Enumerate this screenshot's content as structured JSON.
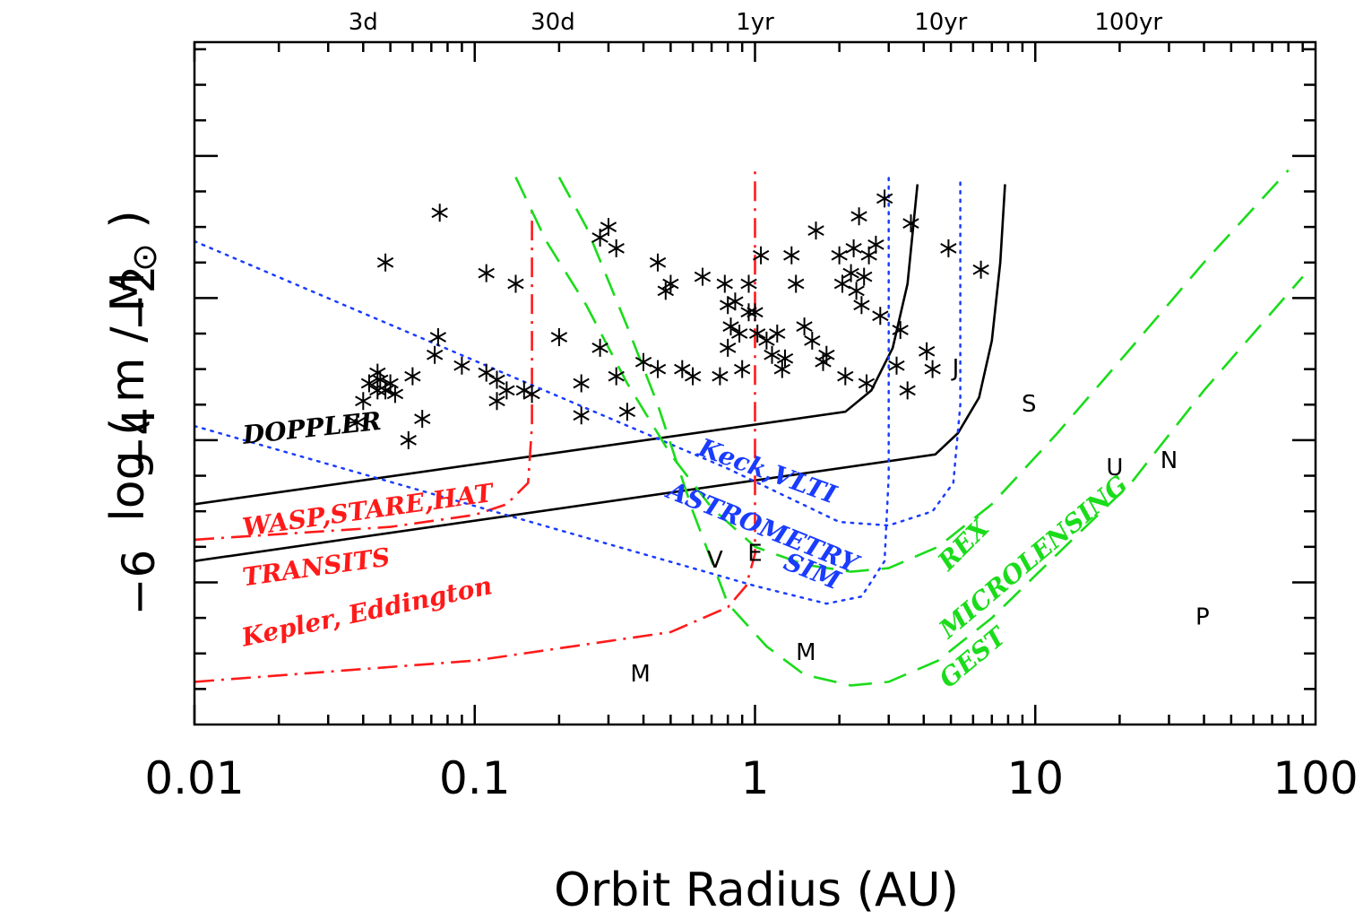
{
  "chart_data": {
    "type": "scatter",
    "xlabel": "Orbit Radius (AU)",
    "ylabel": "log ( m / M",
    "ylabel_symbol": "⊙",
    "ylabel_close": " )",
    "xscale": "log",
    "xlim": [
      0.01,
      100
    ],
    "ylim": [
      -8,
      1.6
    ],
    "x_tick_labels": [
      {
        "value": 0.01,
        "label": "0.01"
      },
      {
        "value": 0.1,
        "label": "0.1"
      },
      {
        "value": 1,
        "label": "1"
      },
      {
        "value": 10,
        "label": "10"
      },
      {
        "value": 100,
        "label": "100"
      }
    ],
    "y_tick_labels": [
      {
        "value": -2,
        "label": "−2"
      },
      {
        "value": -4,
        "label": "−4"
      },
      {
        "value": -6,
        "label": "−6"
      }
    ],
    "period_labels": [
      {
        "x": 0.04,
        "label": "3d"
      },
      {
        "x": 0.19,
        "label": "30d"
      },
      {
        "x": 1.0,
        "label": "1yr"
      },
      {
        "x": 4.6,
        "label": "10yr"
      },
      {
        "x": 21.5,
        "label": "100yr"
      }
    ],
    "planets": [
      {
        "label": "M",
        "x": 0.39,
        "y": -7.3
      },
      {
        "label": "V",
        "x": 0.72,
        "y": -5.7
      },
      {
        "label": "E",
        "x": 1.0,
        "y": -5.6
      },
      {
        "label": "M",
        "x": 1.52,
        "y": -7.0
      },
      {
        "label": "J",
        "x": 5.2,
        "y": -3.0
      },
      {
        "label": "S",
        "x": 9.5,
        "y": -3.5
      },
      {
        "label": "U",
        "x": 19.2,
        "y": -4.4
      },
      {
        "label": "N",
        "x": 30.0,
        "y": -4.3
      },
      {
        "label": "P",
        "x": 39.5,
        "y": -6.5
      }
    ],
    "method_labels": [
      {
        "text": "DOPPLER",
        "x": 0.015,
        "y": -4.05,
        "angle": -6,
        "color": "#000000"
      },
      {
        "text": "WASP,STARE,HAT",
        "x": 0.015,
        "y": -5.35,
        "angle": -8,
        "color": "#ff1a1a"
      },
      {
        "text": "TRANSITS",
        "x": 0.015,
        "y": -6.05,
        "angle": -8,
        "color": "#ff1a1a"
      },
      {
        "text": "Kepler,  Eddington",
        "x": 0.015,
        "y": -6.9,
        "angle": -12,
        "color": "#ff1a1a"
      },
      {
        "text": "Keck,VLTI",
        "x": 0.62,
        "y": -4.2,
        "angle": 20,
        "color": "#1a3cff"
      },
      {
        "text": "ASTROMETRY",
        "x": 0.48,
        "y": -4.8,
        "angle": 22,
        "color": "#1a3cff"
      },
      {
        "text": "SIM",
        "x": 1.25,
        "y": -5.8,
        "angle": 22,
        "color": "#1a3cff"
      },
      {
        "text": "REX",
        "x": 4.9,
        "y": -5.85,
        "angle": -45,
        "color": "#1adc1a"
      },
      {
        "text": "MICROLENSING",
        "x": 4.9,
        "y": -6.8,
        "angle": -40,
        "color": "#1adc1a"
      },
      {
        "text": "GEST",
        "x": 4.9,
        "y": -7.5,
        "angle": -40,
        "color": "#1adc1a"
      }
    ],
    "series": [
      {
        "name": "DOPPLER",
        "style": "solid",
        "color": "#000000",
        "segments": [
          [
            [
              0.01,
              -4.9
            ],
            [
              2.1,
              -3.6
            ],
            [
              2.6,
              -3.3
            ],
            [
              3.1,
              -2.7
            ],
            [
              3.5,
              -1.8
            ],
            [
              3.8,
              -0.4
            ]
          ],
          [
            [
              0.01,
              -5.7
            ],
            [
              4.4,
              -4.2
            ],
            [
              5.3,
              -3.9
            ],
            [
              6.3,
              -3.4
            ],
            [
              7.0,
              -2.6
            ],
            [
              7.5,
              -1.5
            ],
            [
              7.8,
              -0.4
            ]
          ]
        ]
      },
      {
        "name": "TRANSITS",
        "style": "dashdot",
        "color": "#ff1a1a",
        "segments": [
          [
            [
              0.01,
              -5.4
            ],
            [
              0.05,
              -5.22
            ],
            [
              0.1,
              -5.05
            ],
            [
              0.13,
              -4.9
            ],
            [
              0.155,
              -4.6
            ],
            [
              0.16,
              -3.8
            ],
            [
              0.16,
              -0.7
            ]
          ],
          [
            [
              0.01,
              -7.4
            ],
            [
              0.1,
              -7.1
            ],
            [
              0.5,
              -6.7
            ],
            [
              0.8,
              -6.35
            ],
            [
              0.93,
              -6.05
            ],
            [
              1.0,
              -5.6
            ],
            [
              1.0,
              -0.2
            ]
          ]
        ]
      },
      {
        "name": "ASTROMETRY",
        "style": "dotted",
        "color": "#1a3cff",
        "segments": [
          [
            [
              0.01,
              -1.2
            ],
            [
              0.8,
              -4.4
            ],
            [
              2.0,
              -5.15
            ],
            [
              3.0,
              -5.2
            ],
            [
              4.3,
              -5.0
            ],
            [
              5.1,
              -4.6
            ],
            [
              5.4,
              -3.5
            ],
            [
              5.4,
              -0.3
            ]
          ],
          [
            [
              0.01,
              -3.8
            ],
            [
              1.0,
              -6.05
            ],
            [
              1.8,
              -6.3
            ],
            [
              2.4,
              -6.2
            ],
            [
              2.9,
              -5.7
            ],
            [
              3.0,
              -4.5
            ],
            [
              3.0,
              -0.3
            ]
          ]
        ]
      },
      {
        "name": "MICROLENSING",
        "style": "dashed",
        "color": "#1adc1a",
        "segments": [
          [
            [
              0.14,
              -0.3
            ],
            [
              0.18,
              -1.2
            ],
            [
              0.25,
              -2.1
            ],
            [
              0.35,
              -3.2
            ],
            [
              0.5,
              -4.2
            ],
            [
              0.7,
              -4.95
            ],
            [
              1.0,
              -5.5
            ],
            [
              1.5,
              -5.75
            ],
            [
              2.2,
              -5.85
            ],
            [
              3.0,
              -5.8
            ],
            [
              4.5,
              -5.5
            ],
            [
              7.0,
              -4.9
            ],
            [
              12.0,
              -3.9
            ],
            [
              22.0,
              -2.7
            ],
            [
              40.0,
              -1.5
            ],
            [
              80.0,
              -0.2
            ]
          ],
          [
            [
              0.2,
              -0.3
            ],
            [
              0.25,
              -1.0
            ],
            [
              0.35,
              -2.4
            ],
            [
              0.45,
              -3.5
            ],
            [
              0.6,
              -5.0
            ],
            [
              0.8,
              -6.3
            ],
            [
              1.1,
              -6.9
            ],
            [
              1.5,
              -7.3
            ],
            [
              2.2,
              -7.45
            ],
            [
              3.0,
              -7.4
            ],
            [
              4.5,
              -7.1
            ],
            [
              7.0,
              -6.5
            ],
            [
              12.0,
              -5.6
            ],
            [
              22.0,
              -4.6
            ],
            [
              40.0,
              -3.3
            ],
            [
              90.0,
              -1.7
            ]
          ]
        ]
      },
      {
        "name": "Known planets",
        "style": "asterisk",
        "color": "#000000",
        "points": [
          [
            0.04,
            -3.45
          ],
          [
            0.042,
            -3.2
          ],
          [
            0.045,
            -3.3
          ],
          [
            0.046,
            -3.15
          ],
          [
            0.048,
            -3.3
          ],
          [
            0.05,
            -3.2
          ],
          [
            0.052,
            -3.35
          ],
          [
            0.045,
            -3.05
          ],
          [
            0.048,
            -1.5
          ],
          [
            0.038,
            -3.75
          ],
          [
            0.058,
            -4.0
          ],
          [
            0.06,
            -3.1
          ],
          [
            0.065,
            -3.7
          ],
          [
            0.072,
            -2.8
          ],
          [
            0.074,
            -2.55
          ],
          [
            0.075,
            -0.8
          ],
          [
            0.09,
            -2.95
          ],
          [
            0.11,
            -1.65
          ],
          [
            0.11,
            -3.05
          ],
          [
            0.12,
            -3.15
          ],
          [
            0.13,
            -3.3
          ],
          [
            0.14,
            -1.8
          ],
          [
            0.15,
            -3.3
          ],
          [
            0.16,
            -3.35
          ],
          [
            0.12,
            -3.45
          ],
          [
            0.2,
            -2.55
          ],
          [
            0.24,
            -3.65
          ],
          [
            0.24,
            -3.2
          ],
          [
            0.28,
            -2.7
          ],
          [
            0.3,
            -1.0
          ],
          [
            0.32,
            -1.3
          ],
          [
            0.35,
            -3.6
          ],
          [
            0.32,
            -3.1
          ],
          [
            0.28,
            -1.15
          ],
          [
            0.4,
            -2.9
          ],
          [
            0.45,
            -1.5
          ],
          [
            0.48,
            -1.9
          ],
          [
            0.5,
            -1.8
          ],
          [
            0.45,
            -3.0
          ],
          [
            0.55,
            -3.0
          ],
          [
            0.6,
            -3.1
          ],
          [
            0.65,
            -1.7
          ],
          [
            0.75,
            -3.1
          ],
          [
            0.78,
            -1.8
          ],
          [
            0.8,
            -2.1
          ],
          [
            0.82,
            -2.4
          ],
          [
            0.85,
            -2.05
          ],
          [
            0.88,
            -2.5
          ],
          [
            0.9,
            -3.0
          ],
          [
            0.95,
            -1.8
          ],
          [
            1.0,
            -2.2
          ],
          [
            1.02,
            -2.5
          ],
          [
            1.1,
            -2.6
          ],
          [
            1.15,
            -2.8
          ],
          [
            1.2,
            -2.5
          ],
          [
            1.25,
            -3.0
          ],
          [
            1.28,
            -2.85
          ],
          [
            1.35,
            -1.4
          ],
          [
            1.4,
            -1.8
          ],
          [
            1.5,
            -2.4
          ],
          [
            1.6,
            -2.6
          ],
          [
            1.65,
            -1.05
          ],
          [
            1.75,
            -2.9
          ],
          [
            1.8,
            -2.8
          ],
          [
            2.0,
            -1.4
          ],
          [
            2.05,
            -1.8
          ],
          [
            2.1,
            -3.1
          ],
          [
            2.2,
            -1.65
          ],
          [
            2.3,
            -1.9
          ],
          [
            2.35,
            -0.85
          ],
          [
            2.4,
            -2.1
          ],
          [
            2.45,
            -1.7
          ],
          [
            2.5,
            -3.2
          ],
          [
            2.55,
            -1.4
          ],
          [
            2.7,
            -1.25
          ],
          [
            2.8,
            -2.25
          ],
          [
            2.9,
            -0.6
          ],
          [
            3.2,
            -2.95
          ],
          [
            3.3,
            -2.45
          ],
          [
            3.5,
            -3.3
          ],
          [
            3.6,
            -0.95
          ],
          [
            4.1,
            -2.75
          ],
          [
            4.3,
            -3.0
          ],
          [
            4.9,
            -1.3
          ],
          [
            6.4,
            -1.6
          ],
          [
            2.25,
            -1.3
          ],
          [
            1.05,
            -1.4
          ],
          [
            0.95,
            -2.2
          ],
          [
            0.8,
            -2.7
          ]
        ]
      }
    ]
  }
}
